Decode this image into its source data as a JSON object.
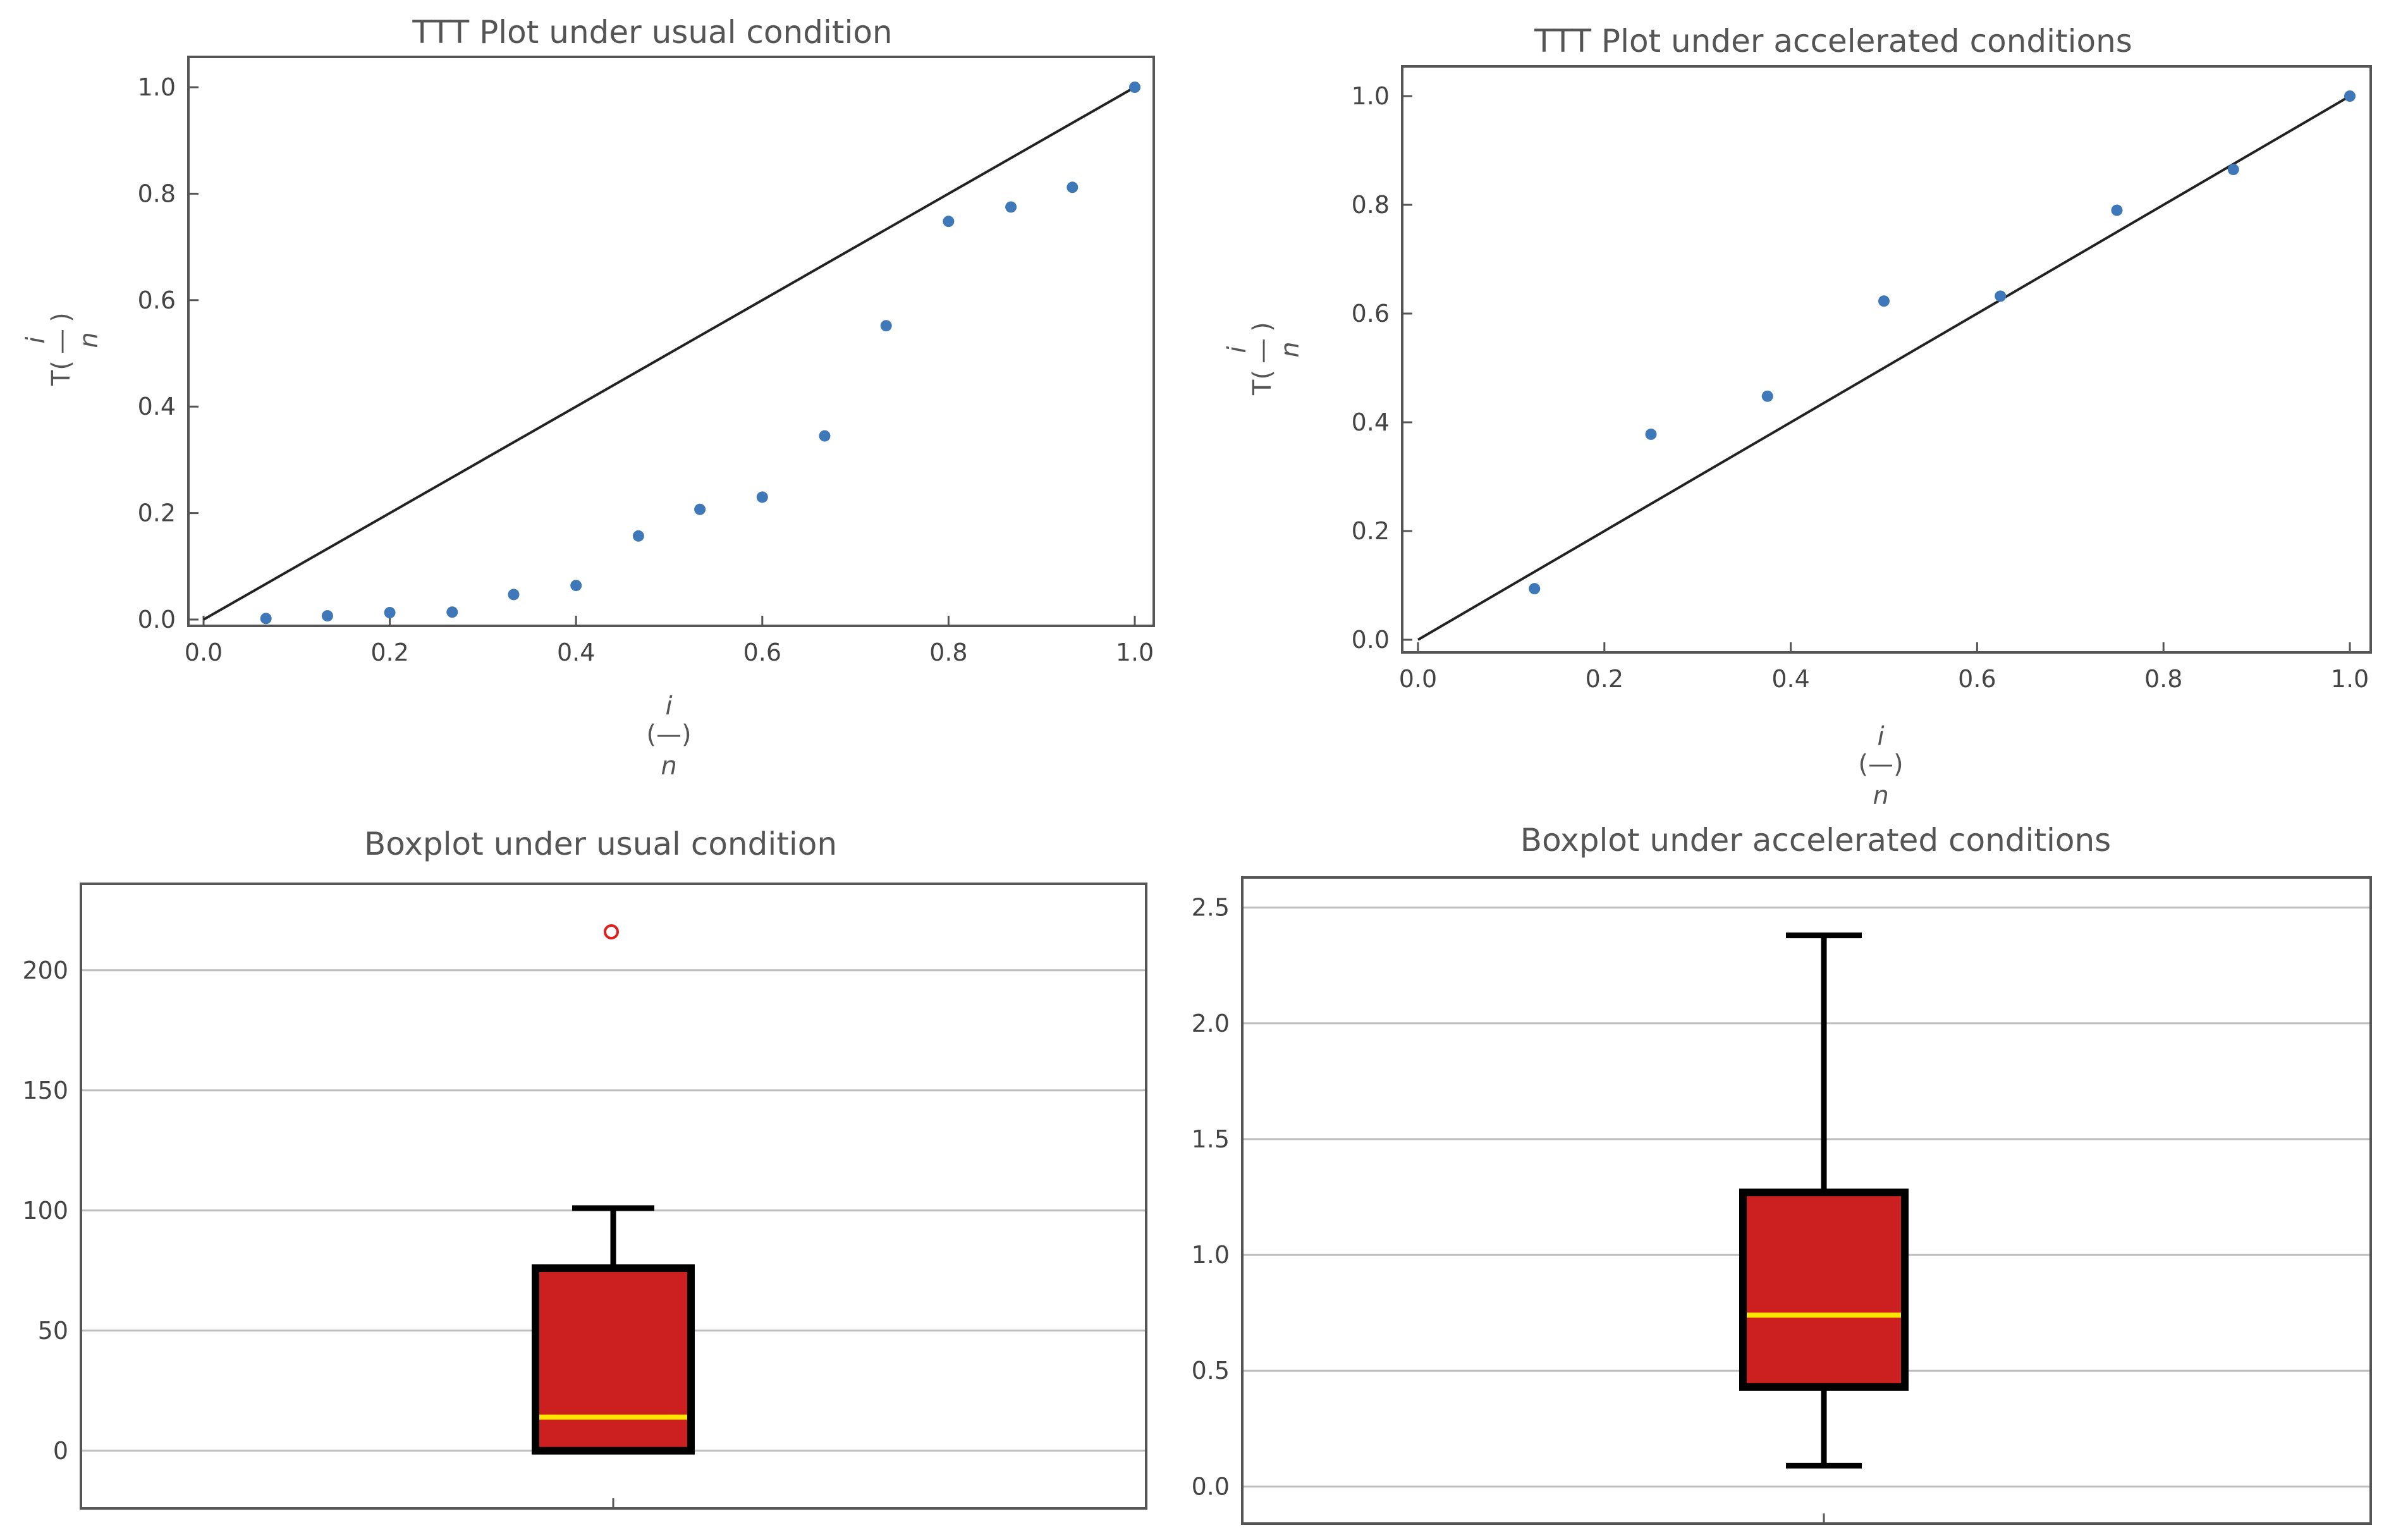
{
  "colors": {
    "point": "#3f78b8",
    "diagonal": "#222222",
    "box_fill": "#cc1f1f",
    "median": "#ffe600",
    "outlier": "#e21b1b",
    "grid": "#bdbdbd"
  },
  "chart_data": [
    {
      "id": "ttt-usual",
      "type": "scatter",
      "title": "TTT Plot under usual condition",
      "xlabel": {
        "top": "i",
        "mid": "(—)",
        "bottom": "n"
      },
      "ylabel": {
        "prefix": "T(",
        "dash": "—",
        "suffix": ")",
        "top": "i",
        "bottom": "n"
      },
      "xlim": [
        0,
        1
      ],
      "ylim": [
        0,
        1
      ],
      "xticks": [
        "0.0",
        "0.2",
        "0.4",
        "0.6",
        "0.8",
        "1.0"
      ],
      "yticks": [
        "0.0",
        "0.2",
        "0.4",
        "0.6",
        "0.8",
        "1.0"
      ],
      "reference_line": [
        [
          0,
          0
        ],
        [
          1,
          1
        ]
      ],
      "x": [
        0.067,
        0.133,
        0.2,
        0.267,
        0.333,
        0.4,
        0.467,
        0.533,
        0.6,
        0.667,
        0.733,
        0.8,
        0.867,
        0.933,
        1.0
      ],
      "y": [
        0.002,
        0.007,
        0.013,
        0.014,
        0.047,
        0.064,
        0.157,
        0.207,
        0.23,
        0.345,
        0.552,
        0.748,
        0.775,
        0.812,
        1.0
      ]
    },
    {
      "id": "ttt-accelerated",
      "type": "scatter",
      "title": "TTT Plot under accelerated conditions",
      "xlabel": {
        "top": "i",
        "mid": "(—)",
        "bottom": "n"
      },
      "ylabel": {
        "prefix": "T(",
        "dash": "—",
        "suffix": ")",
        "top": "i",
        "bottom": "n"
      },
      "xlim": [
        0,
        1
      ],
      "ylim": [
        0,
        1
      ],
      "xticks": [
        "0.0",
        "0.2",
        "0.4",
        "0.6",
        "0.8",
        "1.0"
      ],
      "yticks": [
        "0.0",
        "0.2",
        "0.4",
        "0.6",
        "0.8",
        "1.0"
      ],
      "reference_line": [
        [
          0,
          0
        ],
        [
          1,
          1
        ]
      ],
      "x": [
        0.125,
        0.25,
        0.375,
        0.5,
        0.625,
        0.75,
        0.875,
        1.0
      ],
      "y": [
        0.094,
        0.378,
        0.448,
        0.623,
        0.632,
        0.79,
        0.865,
        1.0
      ]
    },
    {
      "id": "box-usual",
      "type": "box",
      "title": "Boxplot under usual condition",
      "ylim": [
        -24,
        236
      ],
      "yticks": [
        0,
        50,
        100,
        150,
        200
      ],
      "ytick_labels": [
        "0",
        "50",
        "100",
        "150",
        "200"
      ],
      "whisker_low": 0,
      "q1": 0,
      "median": 14,
      "q3": 76,
      "whisker_high": 101,
      "outliers": [
        216
      ]
    },
    {
      "id": "box-accelerated",
      "type": "box",
      "title": "Boxplot under accelerated conditions",
      "ylim": [
        -0.16,
        2.63
      ],
      "yticks": [
        0,
        0.5,
        1,
        1.5,
        2,
        2.5
      ],
      "ytick_labels": [
        "0.0",
        "0.5",
        "1.0",
        "1.5",
        "2.0",
        "2.5"
      ],
      "whisker_low": 0.09,
      "q1": 0.43,
      "median": 0.74,
      "q3": 1.27,
      "whisker_high": 2.38,
      "outliers": []
    }
  ]
}
